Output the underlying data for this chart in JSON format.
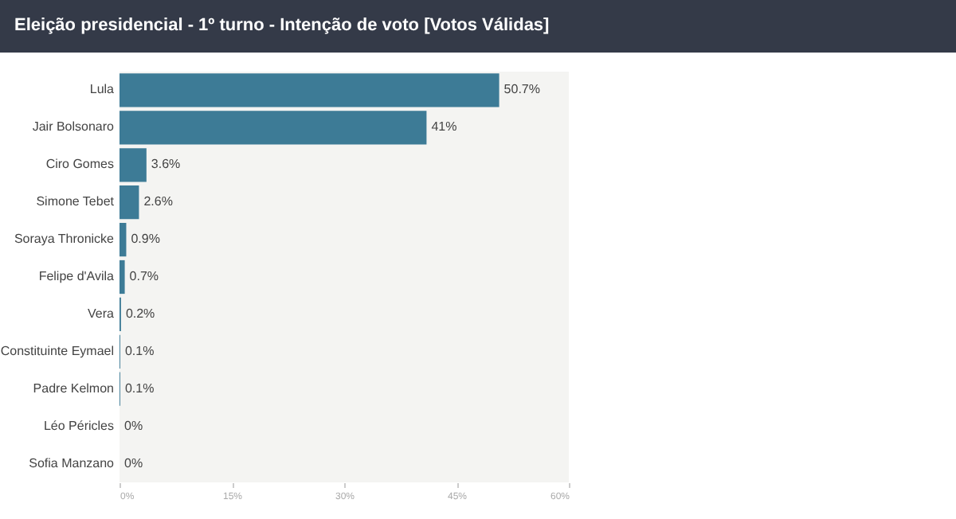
{
  "chart_data": {
    "type": "bar",
    "orientation": "horizontal",
    "title": "Eleição presidencial - 1º turno - Intenção de voto [Votos Válidas]",
    "categories": [
      "Lula",
      "Jair Bolsonaro",
      "Ciro Gomes",
      "Simone Tebet",
      "Soraya Thronicke",
      "Felipe d'Avila",
      "Vera",
      "Constituinte Eymael",
      "Padre Kelmon",
      "Léo Péricles",
      "Sofia Manzano"
    ],
    "values": [
      50.7,
      41,
      3.6,
      2.6,
      0.9,
      0.7,
      0.2,
      0.1,
      0.1,
      0,
      0
    ],
    "value_labels": [
      "50.7%",
      "41%",
      "3.6%",
      "2.6%",
      "0.9%",
      "0.7%",
      "0.2%",
      "0.1%",
      "0.1%",
      "0%",
      "0%"
    ],
    "color": "#3d7b96",
    "xlim": [
      0,
      60
    ],
    "xticks": [
      {
        "value": 0,
        "label": "0%"
      },
      {
        "value": 15,
        "label": "15%"
      },
      {
        "value": 30,
        "label": "30%"
      },
      {
        "value": 45,
        "label": "45%"
      },
      {
        "value": 60,
        "label": "60%"
      }
    ],
    "grid": false
  }
}
